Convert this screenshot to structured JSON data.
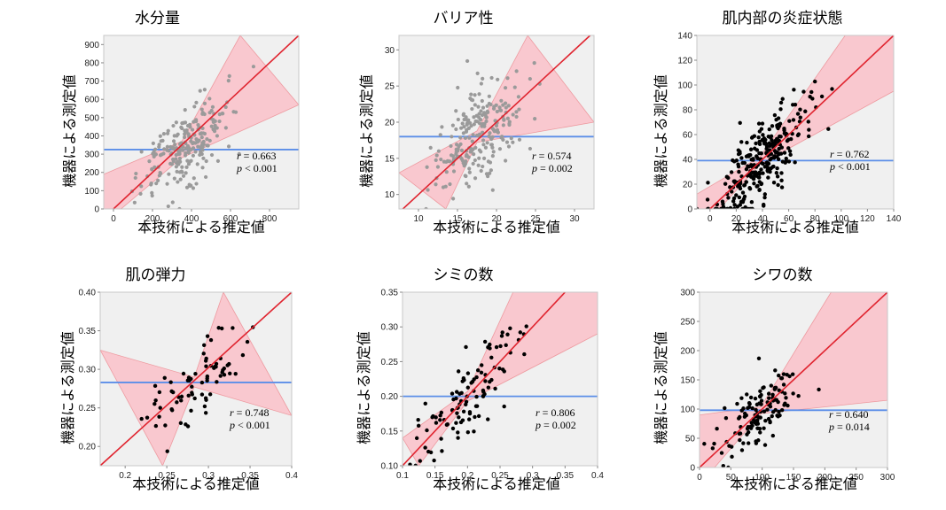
{
  "common": {
    "xlabel": "本技術による推定値",
    "ylabel": "機器による測定値"
  },
  "colors": {
    "fit_line": "#e0242f",
    "confidence_band": "#f9c8cf",
    "mean_line": "#5b8ee8",
    "point_gray": "#9a9a9a",
    "point_black": "#000000",
    "plot_bg": "#f0f0f0"
  },
  "chart_data": [
    {
      "type": "scatter",
      "title": "水分量",
      "xlabel": "本技術による推定値",
      "ylabel": "機器による測定値",
      "xlim": [
        -50,
        950
      ],
      "ylim": [
        0,
        950
      ],
      "xticks": [
        0,
        200,
        400,
        600,
        800
      ],
      "yticks": [
        0,
        100,
        200,
        300,
        400,
        500,
        600,
        700,
        800,
        900
      ],
      "point_color": "gray",
      "point_count": 230,
      "fit": {
        "x0": 0,
        "y0": 0,
        "x1": 950,
        "y1": 950
      },
      "mean_y": 325,
      "band": {
        "upper": [
          [
            -50,
            190
          ],
          [
            350,
            370
          ],
          [
            650,
            950
          ]
        ],
        "lower": [
          [
            -50,
            -80
          ],
          [
            350,
            280
          ],
          [
            950,
            570
          ]
        ]
      },
      "r_label": "r",
      "r": "= 0.663",
      "p_label": "p",
      "p": "< 0.001",
      "cluster": {
        "cx": 350,
        "cy": 325,
        "sx": 120,
        "sy": 150,
        "corr": 0.663
      }
    },
    {
      "type": "scatter",
      "title": "バリア性",
      "xlabel": "本技術による推定値",
      "ylabel": "機器による測定値",
      "xlim": [
        7.5,
        32.5
      ],
      "ylim": [
        8,
        32
      ],
      "xticks": [
        10,
        15,
        20,
        25,
        30
      ],
      "yticks": [
        10,
        15,
        20,
        25,
        30
      ],
      "point_color": "gray",
      "point_count": 230,
      "fit": {
        "x0": 7.5,
        "y0": 7.5,
        "x1": 32,
        "y1": 32
      },
      "mean_y": 18,
      "band": {
        "upper": [
          [
            7.5,
            13
          ],
          [
            17.5,
            18.8
          ],
          [
            24,
            32
          ]
        ],
        "lower": [
          [
            13.5,
            8
          ],
          [
            17.5,
            17.2
          ],
          [
            32.5,
            20
          ]
        ]
      },
      "r_label": "r",
      "r": "= 0.574",
      "p_label": "p",
      "p": "= 0.002",
      "cluster": {
        "cx": 17.5,
        "cy": 18,
        "sx": 2.8,
        "sy": 4.0,
        "corr": 0.574
      }
    },
    {
      "type": "scatter",
      "title": "肌内部の炎症状態",
      "xlabel": "本技術による推定値",
      "ylabel": "機器による測定値",
      "xlim": [
        -10,
        140
      ],
      "ylim": [
        0,
        140
      ],
      "xticks": [
        0,
        20,
        40,
        60,
        80,
        100,
        120,
        140
      ],
      "yticks": [
        0,
        20,
        40,
        60,
        80,
        100,
        120,
        140
      ],
      "point_color": "black",
      "point_count": 300,
      "fit": {
        "x0": -5,
        "y0": -5,
        "x1": 140,
        "y1": 140
      },
      "mean_y": 39,
      "band": {
        "upper": [
          [
            -10,
            12
          ],
          [
            38,
            42
          ],
          [
            103,
            140
          ],
          [
            140,
            140
          ]
        ],
        "lower": [
          [
            -10,
            -20
          ],
          [
            38,
            36
          ],
          [
            140,
            95
          ]
        ]
      },
      "r_label": "r",
      "r": "= 0.762",
      "p_label": "p",
      "p": "< 0.001",
      "cluster": {
        "cx": 38,
        "cy": 36,
        "sx": 19,
        "sy": 26,
        "corr": 0.762
      }
    },
    {
      "type": "scatter",
      "title": "肌の弾力",
      "xlabel": "本技術による推定値",
      "ylabel": "機器による測定値",
      "xlim": [
        0.17,
        0.4
      ],
      "ylim": [
        0.175,
        0.4
      ],
      "xticks": [
        0.2,
        0.25,
        0.3,
        0.35,
        0.4
      ],
      "yticks": [
        0.2,
        0.25,
        0.3,
        0.35,
        0.4
      ],
      "point_color": "black",
      "point_count": 75,
      "fit": {
        "x0": 0.17,
        "y0": 0.175,
        "x1": 0.4,
        "y1": 0.4
      },
      "mean_y": 0.283,
      "band": {
        "upper": [
          [
            0.17,
            0.325
          ],
          [
            0.283,
            0.29
          ],
          [
            0.318,
            0.4
          ]
        ],
        "lower": [
          [
            0.245,
            0.175
          ],
          [
            0.283,
            0.277
          ],
          [
            0.4,
            0.24
          ]
        ]
      },
      "r_label": "r",
      "r": "= 0.748",
      "p_label": "p",
      "p": "< 0.001",
      "cluster": {
        "cx": 0.283,
        "cy": 0.283,
        "sx": 0.03,
        "sy": 0.035,
        "corr": 0.748
      }
    },
    {
      "type": "scatter",
      "title": "シミの数",
      "xlabel": "本技術による推定値",
      "ylabel": "機器による測定値",
      "xlim": [
        0.1,
        0.4
      ],
      "ylim": [
        0.1,
        0.35
      ],
      "xticks": [
        0.1,
        0.15,
        0.2,
        0.25,
        0.3,
        0.35,
        0.4
      ],
      "yticks": [
        0.1,
        0.15,
        0.2,
        0.25,
        0.3,
        0.35
      ],
      "point_color": "black",
      "point_count": 110,
      "fit": {
        "x0": 0.1,
        "y0": 0.1,
        "x1": 0.35,
        "y1": 0.35
      },
      "mean_y": 0.2,
      "band": {
        "upper": [
          [
            0.1,
            0.14
          ],
          [
            0.2,
            0.207
          ],
          [
            0.27,
            0.35
          ],
          [
            0.4,
            0.35
          ]
        ],
        "lower": [
          [
            0.125,
            0.1
          ],
          [
            0.2,
            0.193
          ],
          [
            0.4,
            0.29
          ]
        ]
      },
      "r_label": "r",
      "r": "= 0.806",
      "p_label": "p",
      "p": "= 0.002",
      "cluster": {
        "cx": 0.197,
        "cy": 0.197,
        "sx": 0.038,
        "sy": 0.045,
        "corr": 0.806
      }
    },
    {
      "type": "scatter",
      "title": "シワの数",
      "xlabel": "本技術による推定値",
      "ylabel": "機器による測定値",
      "xlim": [
        0,
        300
      ],
      "ylim": [
        0,
        300
      ],
      "xticks": [
        0,
        50,
        100,
        150,
        200,
        250,
        300
      ],
      "yticks": [
        0,
        50,
        100,
        150,
        200,
        250,
        300
      ],
      "point_color": "black",
      "point_count": 130,
      "fit": {
        "x0": 0,
        "y0": 0,
        "x1": 300,
        "y1": 300
      },
      "mean_y": 98,
      "band": {
        "upper": [
          [
            0,
            90
          ],
          [
            98,
            104
          ],
          [
            210,
            300
          ],
          [
            300,
            300
          ]
        ],
        "lower": [
          [
            0,
            -30
          ],
          [
            98,
            92
          ],
          [
            300,
            115
          ]
        ]
      },
      "r_label": "r",
      "r": "= 0.640",
      "p_label": "p",
      "p": "= 0.014",
      "cluster": {
        "cx": 98,
        "cy": 98,
        "sx": 30,
        "sy": 38,
        "corr": 0.64
      }
    }
  ]
}
